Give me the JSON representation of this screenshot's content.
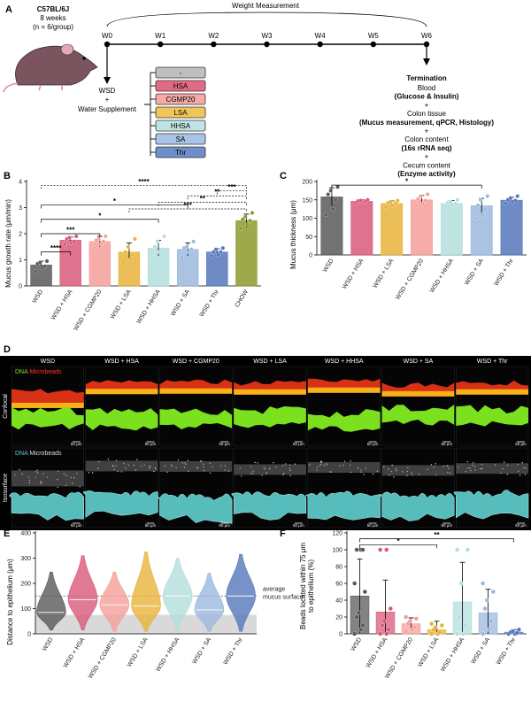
{
  "panels": {
    "A": "A",
    "B": "B",
    "C": "C",
    "D": "D",
    "E": "E",
    "F": "F"
  },
  "design": {
    "mouse": "C57BL/6J",
    "age": "8 weeks",
    "n": "(n = 6/group)",
    "weight_measurement": "Weight Measurement",
    "weeks": [
      "W0",
      "W1",
      "W2",
      "W3",
      "W4",
      "W5",
      "W6"
    ],
    "wsd": "WSD",
    "plus": "+",
    "water": "Water Supplement",
    "supplements": [
      {
        "label": "-",
        "color": "#bfbfbf"
      },
      {
        "label": "HSA",
        "color": "#e26a85"
      },
      {
        "label": "CGMP20",
        "color": "#f5aaa6"
      },
      {
        "label": "LSA",
        "color": "#efc65a"
      },
      {
        "label": "HHSA",
        "color": "#bfe5e3"
      },
      {
        "label": "SA",
        "color": "#a9c4e6"
      },
      {
        "label": "Thr",
        "color": "#6f8fcc"
      }
    ],
    "termination": {
      "title": "Termination",
      "lines": [
        {
          "text": "Blood",
          "bold": false
        },
        {
          "text": "(Glucose & Insulin)",
          "bold": true
        },
        {
          "text": "+",
          "bold": false
        },
        {
          "text": "Colon tissue",
          "bold": false
        },
        {
          "text": "(Mucus measurement, qPCR, Histology)",
          "bold": true
        },
        {
          "text": "+",
          "bold": false
        },
        {
          "text": "Colon content",
          "bold": false
        },
        {
          "text": "(16s rRNA seq)",
          "bold": true
        },
        {
          "text": "+",
          "bold": false
        },
        {
          "text": "Cecum content",
          "bold": false
        },
        {
          "text": "(Enzyme activity)",
          "bold": true
        }
      ]
    }
  },
  "colors": {
    "WSD": "#595959",
    "HSA": "#d9597a",
    "CGMP20": "#f59f9a",
    "LSA": "#e8b33a",
    "HHSA": "#b3dfdc",
    "SA": "#9bb8dd",
    "Thr": "#5577bb",
    "CHOW": "#8c9a2a"
  },
  "chart_data": [
    {
      "panel": "B",
      "type": "bar",
      "ylabel": "Mucus growth rate (μm/min)",
      "ylim": [
        0,
        4
      ],
      "yticks": [
        0,
        1,
        2,
        3,
        4
      ],
      "categories": [
        "WSD",
        "WSD + HSA",
        "WSD + CGMP20",
        "WSD + LSA",
        "WSD + HHSA",
        "WSD + SA",
        "WSD + Thr",
        "CHOW"
      ],
      "values": [
        0.8,
        1.75,
        1.7,
        1.3,
        1.45,
        1.4,
        1.3,
        2.5
      ],
      "errors": [
        0.15,
        0.12,
        0.2,
        0.35,
        0.3,
        0.25,
        0.12,
        0.25
      ],
      "points": [
        [
          0.55,
          0.7,
          0.75,
          0.85,
          0.9,
          0.95
        ],
        [
          1.6,
          1.65,
          1.7,
          1.8,
          1.85,
          1.9
        ],
        [
          1.45,
          1.6,
          1.7,
          1.75,
          1.8,
          1.9
        ],
        [
          0.9,
          1.0,
          1.2,
          1.3,
          1.5,
          1.8
        ],
        [
          1.1,
          1.3,
          1.4,
          1.5,
          1.7,
          1.9
        ],
        [
          1.1,
          1.3,
          1.4,
          1.45,
          1.5,
          1.7
        ],
        [
          1.15,
          1.2,
          1.3,
          1.3,
          1.4,
          1.45
        ],
        [
          2.2,
          2.35,
          2.5,
          2.55,
          2.65,
          2.8
        ]
      ],
      "brackets": [
        {
          "from": 0,
          "to": 1,
          "label": "****",
          "level": 1.3,
          "dashed": false
        },
        {
          "from": 0,
          "to": 2,
          "label": "***",
          "level": 2.0,
          "dashed": false
        },
        {
          "from": 0,
          "to": 4,
          "label": "*",
          "level": 2.55,
          "dashed": false
        },
        {
          "from": 0,
          "to": 5,
          "label": "*",
          "level": 3.1,
          "dashed": false
        },
        {
          "from": 0,
          "to": 7,
          "label": "****",
          "level": 3.85,
          "dashed": true
        },
        {
          "from": 3,
          "to": 7,
          "label": "***",
          "level": 2.95,
          "dashed": true
        },
        {
          "from": 4,
          "to": 7,
          "label": "**",
          "level": 3.2,
          "dashed": true
        },
        {
          "from": 5,
          "to": 7,
          "label": "**",
          "level": 3.45,
          "dashed": true
        },
        {
          "from": 6,
          "to": 7,
          "label": "***",
          "level": 3.65,
          "dashed": true
        }
      ]
    },
    {
      "panel": "C",
      "type": "bar",
      "ylabel": "Mucus thickness (μm)",
      "ylim": [
        0,
        200
      ],
      "yticks": [
        0,
        50,
        100,
        150,
        200
      ],
      "categories": [
        "WSD",
        "WSD + HSA",
        "WSD + LSA",
        "WSD + CGMP20",
        "WSD + HHSA",
        "WSD + SA",
        "WSD + Thr"
      ],
      "values": [
        158,
        146,
        140,
        150,
        140,
        134,
        149
      ],
      "errors": [
        25,
        4,
        7,
        12,
        8,
        20,
        8
      ],
      "points": [
        [
          110,
          125,
          150,
          165,
          175,
          185
        ],
        [
          142,
          144,
          146,
          147,
          148,
          150
        ],
        [
          130,
          135,
          140,
          142,
          145,
          148
        ],
        [
          135,
          140,
          148,
          152,
          160,
          165
        ],
        [
          130,
          135,
          140,
          143,
          145,
          150
        ],
        [
          100,
          110,
          125,
          135,
          150,
          160
        ],
        [
          140,
          145,
          148,
          150,
          155,
          160
        ]
      ],
      "brackets": [
        {
          "from": 0,
          "to": 5,
          "label": "*",
          "level": 190,
          "dashed": false
        }
      ]
    },
    {
      "panel": "E",
      "type": "violin",
      "ylabel": "Distance to epithelium (μm)",
      "ylim": [
        0,
        400
      ],
      "yticks": [
        0,
        100,
        200,
        300,
        400
      ],
      "categories": [
        "WSD",
        "WSD + HSA",
        "WSD + CGMP20",
        "WSD + LSA",
        "WSD + HHSA",
        "WSD + SA",
        "WSD + Thr"
      ],
      "medians": [
        85,
        135,
        115,
        110,
        150,
        95,
        150
      ],
      "ranges": [
        [
          15,
          245
        ],
        [
          15,
          310
        ],
        [
          10,
          245
        ],
        [
          10,
          325
        ],
        [
          10,
          300
        ],
        [
          10,
          240
        ],
        [
          10,
          315
        ]
      ],
      "annotation_line": 150,
      "annotation": [
        "average",
        "mucus surface"
      ],
      "shaded_band": [
        0,
        75
      ]
    },
    {
      "panel": "F",
      "type": "bar",
      "ylabel": "Beads located within 75 μm to epithelium (%)",
      "ylim": [
        0,
        120
      ],
      "yticks": [
        0,
        20,
        40,
        60,
        80,
        100,
        120
      ],
      "categories": [
        "WSD",
        "WSD + HSA",
        "WSD + CGMP20",
        "WSD + LSA",
        "WSD + HHSA",
        "WSD + SA",
        "WSD + Thr"
      ],
      "values": [
        45,
        26,
        12,
        5,
        38,
        25,
        2
      ],
      "errors": [
        44,
        38,
        7,
        10,
        47,
        28,
        3
      ],
      "points": [
        [
          0,
          5,
          10,
          20,
          25,
          50,
          60,
          100,
          100,
          100
        ],
        [
          0,
          0,
          5,
          10,
          15,
          30,
          100,
          100
        ],
        [
          3,
          5,
          8,
          12,
          15,
          18,
          20
        ],
        [
          0,
          0,
          2,
          5,
          8,
          10,
          12
        ],
        [
          0,
          0,
          10,
          20,
          60,
          100,
          100
        ],
        [
          0,
          5,
          15,
          30,
          40,
          50,
          60
        ],
        [
          0,
          0,
          1,
          2,
          3,
          5
        ]
      ],
      "brackets": [
        {
          "from": 0,
          "to": 3,
          "label": "*",
          "level": 106,
          "dashed": false
        },
        {
          "from": 0,
          "to": 6,
          "label": "**",
          "level": 113,
          "dashed": false
        }
      ]
    }
  ],
  "microscopy": {
    "groups": [
      "WSD",
      "WSD + HSA",
      "WSD + CGMP20",
      "WSD + LSA",
      "WSD + HHSA",
      "WSD + SA",
      "WSD + Thr"
    ],
    "row_labels": [
      "Confocal",
      "Isosurface"
    ],
    "legend_confocal": [
      "DNA",
      "Microbeads"
    ],
    "legend_iso": [
      "DNA",
      "Microbeads"
    ],
    "scale": "50 μm",
    "dna_color": "#7be01e",
    "bead_color": "#ff3a1a",
    "iso_color": "#5fd0d0"
  }
}
